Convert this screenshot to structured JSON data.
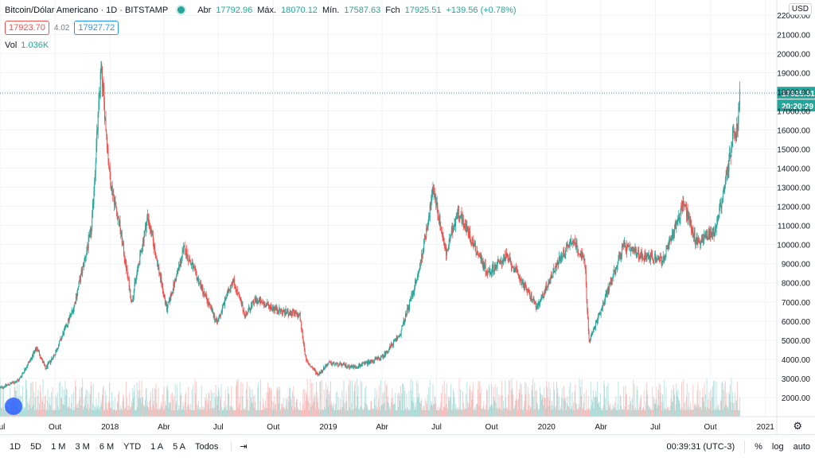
{
  "header": {
    "symbol_title": "Bitcoin/Dólar Americano · 1D · BITSTAMP",
    "open_label": "Abr",
    "open_value": "17792.96",
    "high_label": "Máx.",
    "high_value": "18070.12",
    "low_label": "Mín.",
    "low_value": "17587.63",
    "close_label": "Fch",
    "close_value": "17925.51",
    "change_value": "+139.56 (+0.78%)"
  },
  "trade": {
    "sell_price": "17923.70",
    "spread": "4.02",
    "buy_price": "17927.72"
  },
  "volume": {
    "label": "Vol",
    "value": "1.036K"
  },
  "currency": "USD",
  "last_price_label": "17925.51",
  "countdown_label": "20:20:29",
  "footer": {
    "ranges": [
      "1D",
      "5D",
      "1 M",
      "3 M",
      "6 M",
      "YTD",
      "1 A",
      "5 A",
      "Todos"
    ],
    "time": "00:39:31 (UTC-3)",
    "percent": "%",
    "log": "log",
    "auto": "auto"
  },
  "colors": {
    "up": "#26a69a",
    "down": "#ef5350",
    "grid": "#f0f3fa",
    "axis_text": "#131722"
  },
  "chart_data": {
    "type": "candlestick",
    "title": "Bitcoin/Dólar Americano",
    "ylim": [
      1000,
      22800
    ],
    "y_ticks": [
      2000,
      3000,
      4000,
      5000,
      6000,
      7000,
      8000,
      9000,
      10000,
      11000,
      12000,
      13000,
      14000,
      15000,
      16000,
      17000,
      18000,
      19000,
      20000,
      21000,
      22000
    ],
    "x_ticks": [
      {
        "label": "Jul",
        "date": "2017-07-01"
      },
      {
        "label": "Out",
        "date": "2017-10-01"
      },
      {
        "label": "2018",
        "date": "2018-01-01"
      },
      {
        "label": "Abr",
        "date": "2018-04-01"
      },
      {
        "label": "Jul",
        "date": "2018-07-01"
      },
      {
        "label": "Out",
        "date": "2018-10-01"
      },
      {
        "label": "2019",
        "date": "2019-01-01"
      },
      {
        "label": "Abr",
        "date": "2019-04-01"
      },
      {
        "label": "Jul",
        "date": "2019-07-01"
      },
      {
        "label": "Out",
        "date": "2019-10-01"
      },
      {
        "label": "2020",
        "date": "2020-01-01"
      },
      {
        "label": "Abr",
        "date": "2020-04-01"
      },
      {
        "label": "Jul",
        "date": "2020-07-01"
      },
      {
        "label": "Out",
        "date": "2020-10-01"
      },
      {
        "label": "2021",
        "date": "2021-01-01"
      }
    ],
    "x_range": [
      "2017-07-01",
      "2021-01-20"
    ],
    "price_path": [
      {
        "date": "2017-07-01",
        "close": 2500
      },
      {
        "date": "2017-08-01",
        "close": 2900
      },
      {
        "date": "2017-09-01",
        "close": 4600
      },
      {
        "date": "2017-09-15",
        "close": 3500
      },
      {
        "date": "2017-10-01",
        "close": 4300
      },
      {
        "date": "2017-11-01",
        "close": 6700
      },
      {
        "date": "2017-12-01",
        "close": 10800
      },
      {
        "date": "2017-12-17",
        "close": 19300
      },
      {
        "date": "2018-01-01",
        "close": 13400
      },
      {
        "date": "2018-01-17",
        "close": 11000
      },
      {
        "date": "2018-02-06",
        "close": 7000
      },
      {
        "date": "2018-03-05",
        "close": 11500
      },
      {
        "date": "2018-04-06",
        "close": 6600
      },
      {
        "date": "2018-05-05",
        "close": 9800
      },
      {
        "date": "2018-06-29",
        "close": 5900
      },
      {
        "date": "2018-07-25",
        "close": 8200
      },
      {
        "date": "2018-08-15",
        "close": 6300
      },
      {
        "date": "2018-09-01",
        "close": 7100
      },
      {
        "date": "2018-10-15",
        "close": 6500
      },
      {
        "date": "2018-11-14",
        "close": 6300
      },
      {
        "date": "2018-11-25",
        "close": 3900
      },
      {
        "date": "2018-12-15",
        "close": 3200
      },
      {
        "date": "2019-01-01",
        "close": 3800
      },
      {
        "date": "2019-02-15",
        "close": 3600
      },
      {
        "date": "2019-04-01",
        "close": 4100
      },
      {
        "date": "2019-05-01",
        "close": 5300
      },
      {
        "date": "2019-06-01",
        "close": 8500
      },
      {
        "date": "2019-06-26",
        "close": 12900
      },
      {
        "date": "2019-07-17",
        "close": 9500
      },
      {
        "date": "2019-08-06",
        "close": 11800
      },
      {
        "date": "2019-09-01",
        "close": 10000
      },
      {
        "date": "2019-09-25",
        "close": 8500
      },
      {
        "date": "2019-10-26",
        "close": 9400
      },
      {
        "date": "2019-12-17",
        "close": 6700
      },
      {
        "date": "2020-01-15",
        "close": 8800
      },
      {
        "date": "2020-02-13",
        "close": 10300
      },
      {
        "date": "2020-03-05",
        "close": 9100
      },
      {
        "date": "2020-03-12",
        "close": 4900
      },
      {
        "date": "2020-04-01",
        "close": 6600
      },
      {
        "date": "2020-05-08",
        "close": 9900
      },
      {
        "date": "2020-06-01",
        "close": 9500
      },
      {
        "date": "2020-07-15",
        "close": 9200
      },
      {
        "date": "2020-08-17",
        "close": 12200
      },
      {
        "date": "2020-09-08",
        "close": 10100
      },
      {
        "date": "2020-10-08",
        "close": 10700
      },
      {
        "date": "2020-10-25",
        "close": 13000
      },
      {
        "date": "2020-11-07",
        "close": 15500
      },
      {
        "date": "2020-11-15",
        "close": 16000
      },
      {
        "date": "2020-11-19",
        "close": 17925.51
      }
    ]
  }
}
